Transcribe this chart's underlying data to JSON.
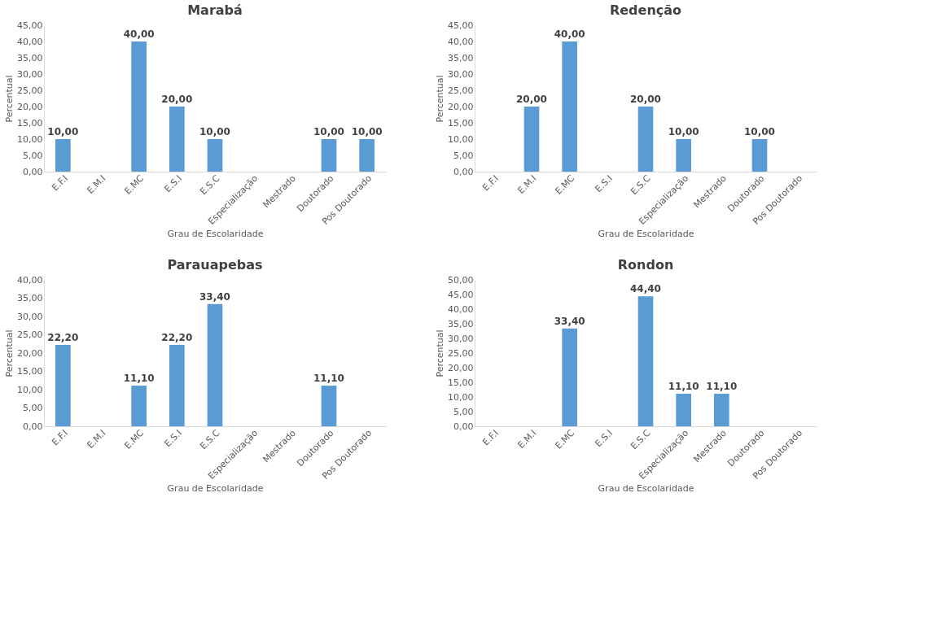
{
  "chart_data": [
    {
      "type": "bar",
      "title": "Marabá",
      "xlabel": "Grau de Escolaridade",
      "ylabel": "Percentual",
      "categories": [
        "E.F.I",
        "E.M.I",
        "E.MC",
        "E.S.I",
        "E.S.C",
        "Especialização",
        "Mestrado",
        "Doutorado",
        "Pos Doutorado"
      ],
      "values": [
        10,
        null,
        40,
        20,
        10,
        null,
        null,
        10,
        10
      ],
      "value_labels": [
        "10,00",
        null,
        "40,00",
        "20,00",
        "10,00",
        null,
        null,
        "10,00",
        "10,00"
      ],
      "color": "#5b9bd5",
      "ylim": [
        0,
        45
      ],
      "yticks": [
        {
          "value": 0,
          "label": "0,00"
        },
        {
          "value": 5,
          "label": "5,00"
        },
        {
          "value": 10,
          "label": "10,00"
        },
        {
          "value": 15,
          "label": "15,00"
        },
        {
          "value": 20,
          "label": "20,00"
        },
        {
          "value": 25,
          "label": "25,00"
        },
        {
          "value": 30,
          "label": "30,00"
        },
        {
          "value": 35,
          "label": "35,00"
        },
        {
          "value": 40,
          "label": "40,00"
        },
        {
          "value": 45,
          "label": "45,00"
        }
      ],
      "grid": false
    },
    {
      "type": "bar",
      "title": "Redenção",
      "xlabel": "Grau de Escolaridade",
      "ylabel": "Percentual",
      "categories": [
        "E.F.I",
        "E.M.I",
        "E.MC",
        "E.S.I",
        "E.S.C",
        "Especialização",
        "Mestrado",
        "Doutorado",
        "Pos Doutorado"
      ],
      "values": [
        null,
        20,
        40,
        null,
        20,
        10,
        null,
        10,
        null
      ],
      "value_labels": [
        null,
        "20,00",
        "40,00",
        null,
        "20,00",
        "10,00",
        null,
        "10,00",
        null
      ],
      "color": "#5b9bd5",
      "ylim": [
        0,
        45
      ],
      "yticks": [
        {
          "value": 0,
          "label": "0,00"
        },
        {
          "value": 5,
          "label": "5,00"
        },
        {
          "value": 10,
          "label": "10,00"
        },
        {
          "value": 15,
          "label": "15,00"
        },
        {
          "value": 20,
          "label": "20,00"
        },
        {
          "value": 25,
          "label": "25,00"
        },
        {
          "value": 30,
          "label": "30,00"
        },
        {
          "value": 35,
          "label": "35,00"
        },
        {
          "value": 40,
          "label": "40,00"
        },
        {
          "value": 45,
          "label": "45,00"
        }
      ],
      "grid": false
    },
    {
      "type": "bar",
      "title": "Parauapebas",
      "xlabel": "Grau de Escolaridade",
      "ylabel": "Percentual",
      "categories": [
        "E.F.I",
        "E.M.I",
        "E.MC",
        "E.S.I",
        "E.S.C",
        "Especialização",
        "Mestrado",
        "Doutorado",
        "Pos Doutorado"
      ],
      "values": [
        22.2,
        null,
        11.1,
        22.2,
        33.4,
        null,
        null,
        11.1,
        null
      ],
      "value_labels": [
        "22,20",
        null,
        "11,10",
        "22,20",
        "33,40",
        null,
        null,
        "11,10",
        null
      ],
      "color": "#5b9bd5",
      "ylim": [
        0,
        40
      ],
      "yticks": [
        {
          "value": 0,
          "label": "0,00"
        },
        {
          "value": 5,
          "label": "5,00"
        },
        {
          "value": 10,
          "label": "10,00"
        },
        {
          "value": 15,
          "label": "15,00"
        },
        {
          "value": 20,
          "label": "20,00"
        },
        {
          "value": 25,
          "label": "25,00"
        },
        {
          "value": 30,
          "label": "30,00"
        },
        {
          "value": 35,
          "label": "35,00"
        },
        {
          "value": 40,
          "label": "40,00"
        }
      ],
      "grid": false
    },
    {
      "type": "bar",
      "title": "Rondon",
      "xlabel": "Grau de Escolaridade",
      "ylabel": "Percentual",
      "categories": [
        "E.F.I",
        "E.M.I",
        "E.MC",
        "E.S.I",
        "E.S.C",
        "Especialização",
        "Mestrado",
        "Doutorado",
        "Pos Doutorado"
      ],
      "values": [
        null,
        null,
        33.4,
        null,
        44.4,
        11.1,
        11.1,
        null,
        null
      ],
      "value_labels": [
        null,
        null,
        "33,40",
        null,
        "44,40",
        "11,10",
        "11,10",
        null,
        null
      ],
      "color": "#5b9bd5",
      "ylim": [
        0,
        50
      ],
      "yticks": [
        {
          "value": 0,
          "label": "0,00"
        },
        {
          "value": 5,
          "label": "5,00"
        },
        {
          "value": 10,
          "label": "10,00"
        },
        {
          "value": 15,
          "label": "15,00"
        },
        {
          "value": 20,
          "label": "20,00"
        },
        {
          "value": 25,
          "label": "25,00"
        },
        {
          "value": 30,
          "label": "30,00"
        },
        {
          "value": 35,
          "label": "35,00"
        },
        {
          "value": 40,
          "label": "40,00"
        },
        {
          "value": 45,
          "label": "45,00"
        },
        {
          "value": 50,
          "label": "50,00"
        }
      ],
      "grid": false
    }
  ]
}
